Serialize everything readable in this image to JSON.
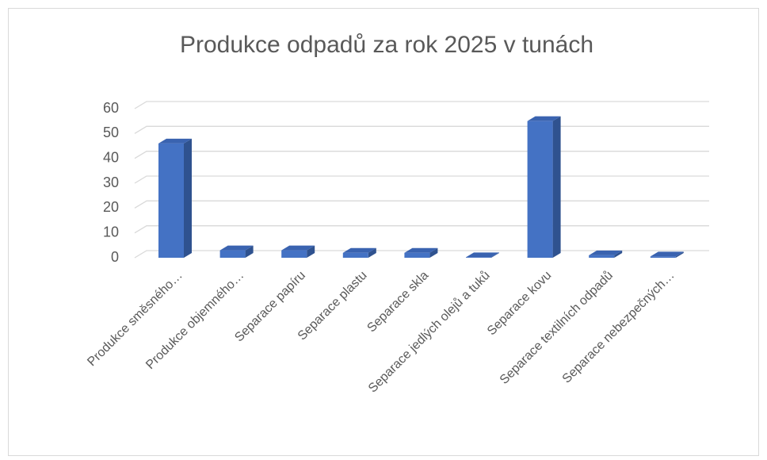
{
  "chart_data": {
    "type": "bar3d",
    "title": "Produkce odpadů za rok 2025 v tunách",
    "categories": [
      "Produkce směsného…",
      "Produkce objemného…",
      "Separace papíru",
      "Separace plastu",
      "Separace skla",
      "Separace jedlých olejů a tuků",
      "Separace kovu",
      "Separace textilních odpadů",
      "Separace nebezpečných…"
    ],
    "values": [
      46,
      3,
      3,
      2,
      2,
      0.2,
      55,
      1,
      0.5
    ],
    "color": "#4472c4",
    "ylim": [
      0,
      60
    ],
    "yticks": [
      0,
      10,
      20,
      30,
      40,
      50,
      60
    ],
    "grid": true
  }
}
